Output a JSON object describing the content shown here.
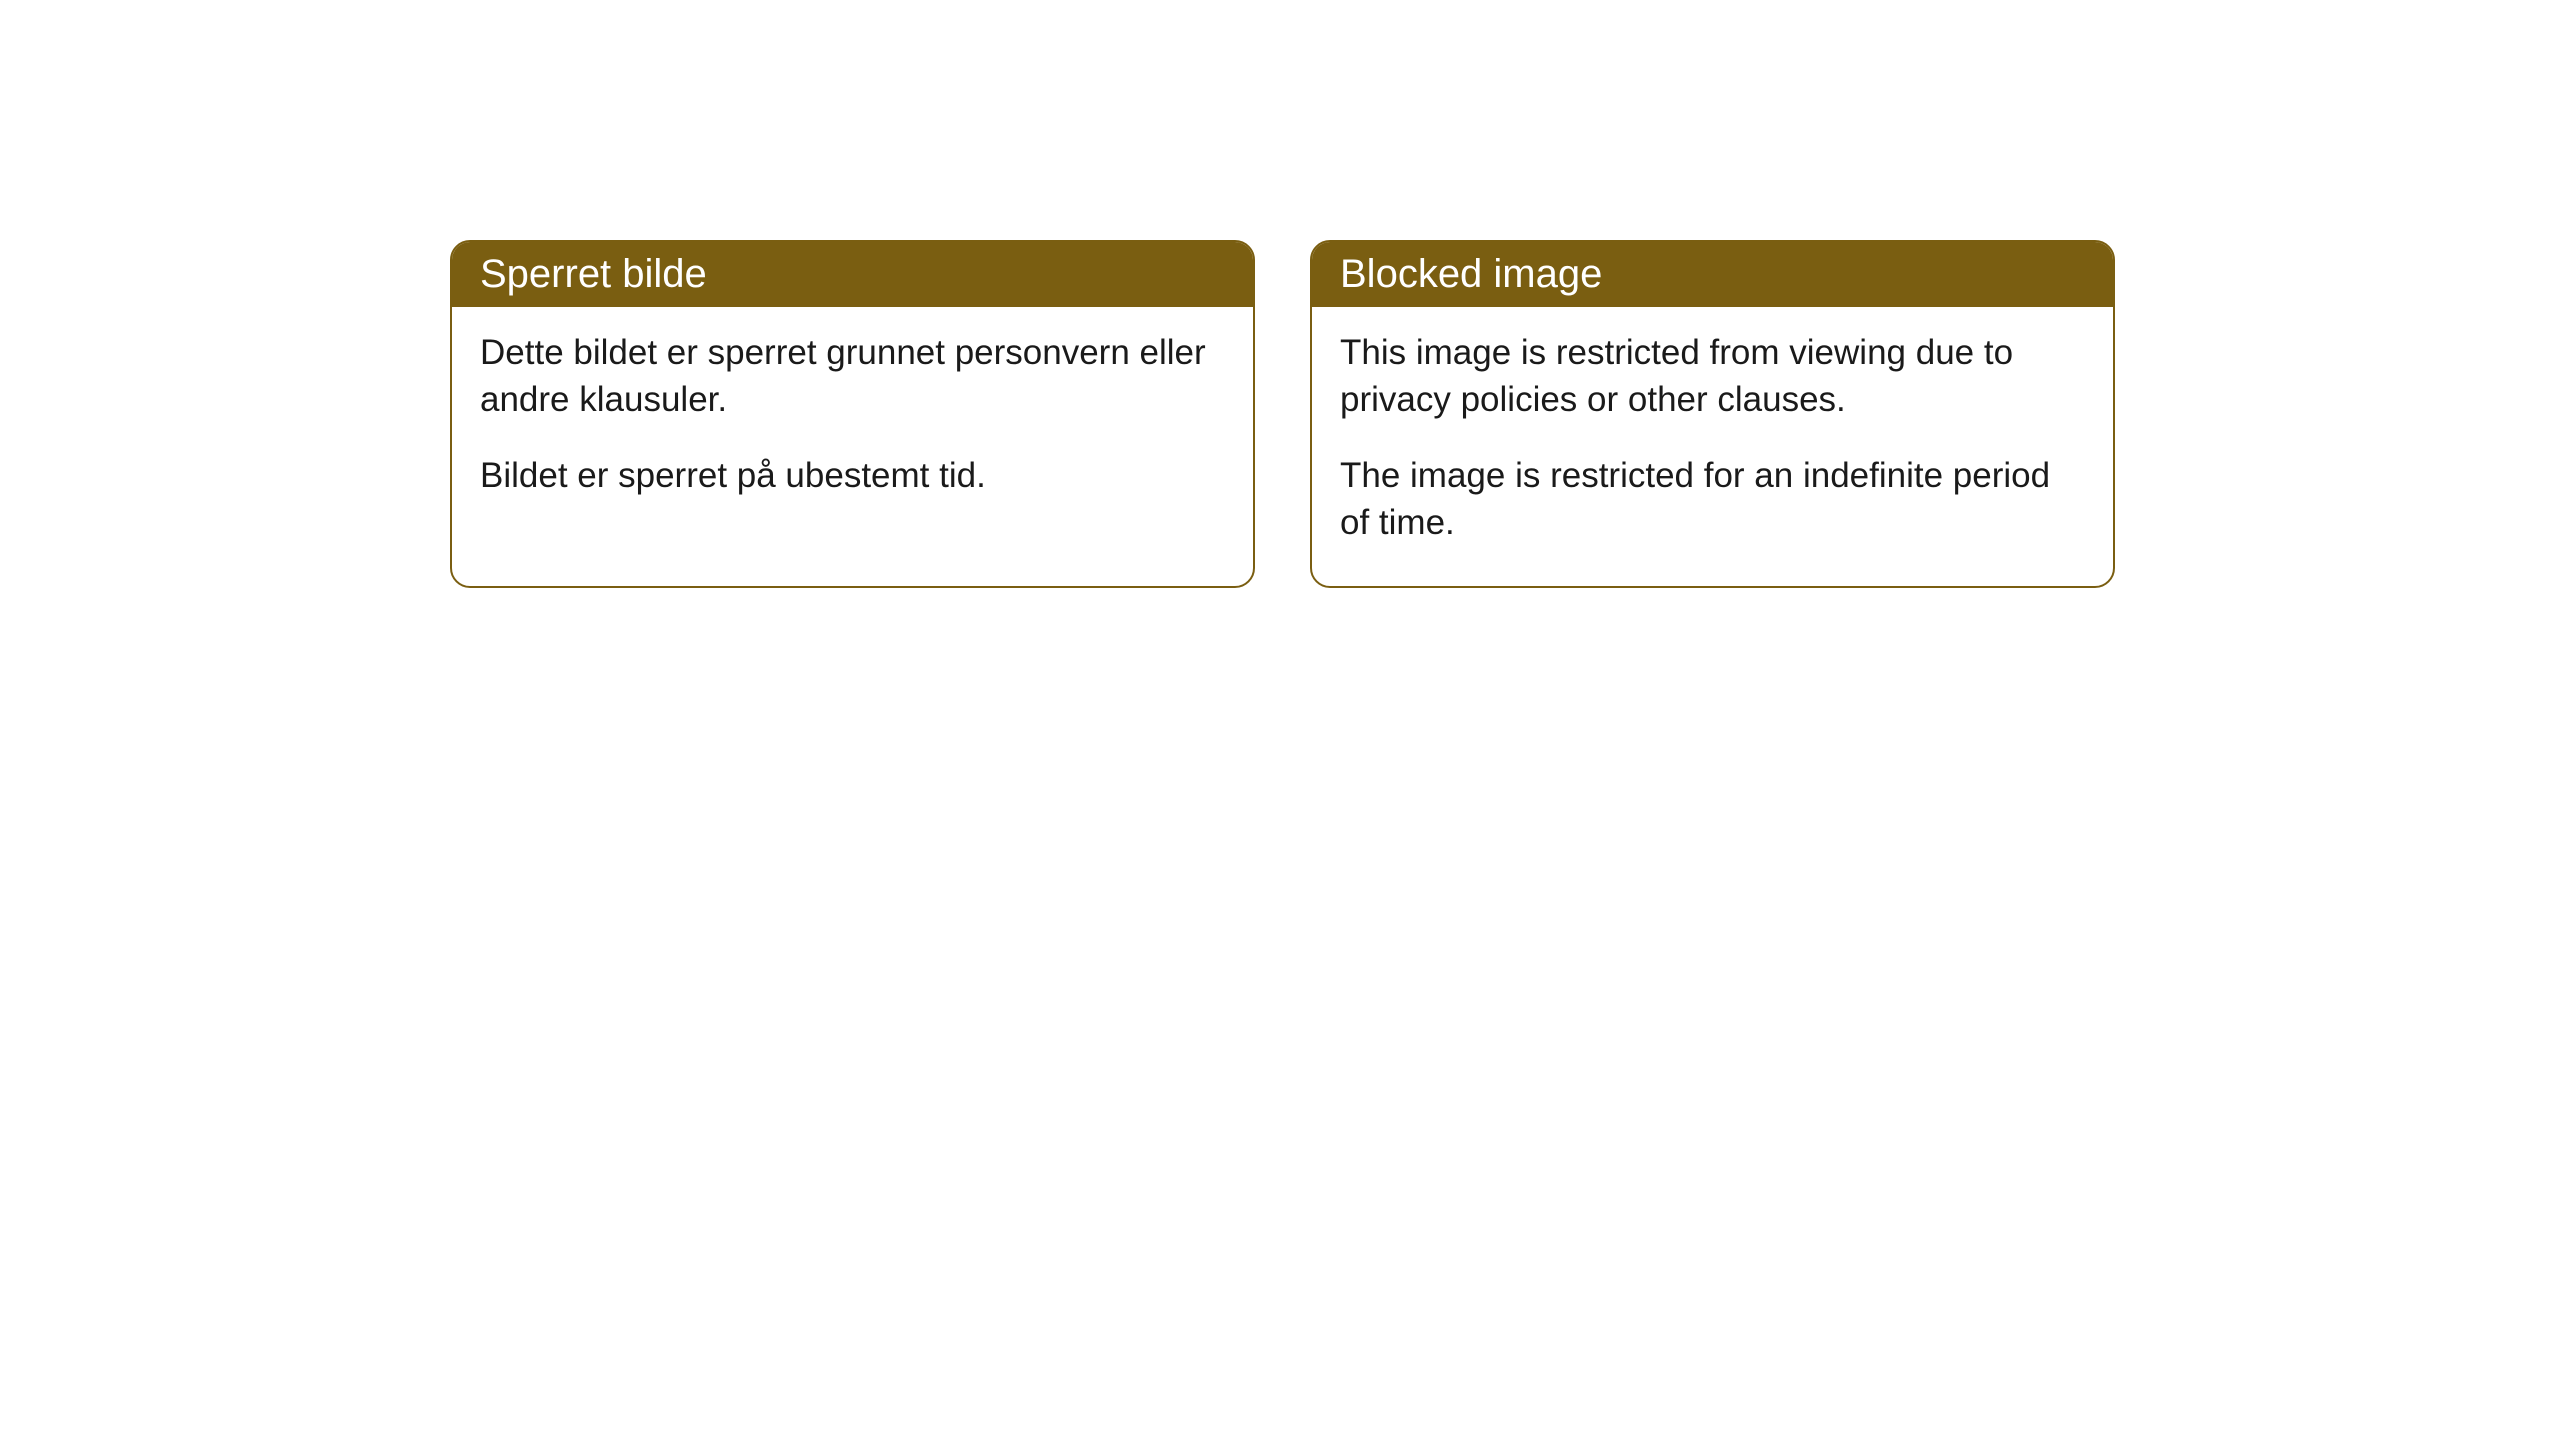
{
  "cards": [
    {
      "title": "Sperret bilde",
      "para1": "Dette bildet er sperret grunnet personvern eller andre klausuler.",
      "para2": "Bildet er sperret på ubestemt tid."
    },
    {
      "title": "Blocked image",
      "para1": "This image is restricted from viewing due to privacy policies or other clauses.",
      "para2": "The image is restricted for an indefinite period of time."
    }
  ],
  "style": {
    "header_bg": "#7a5e11",
    "header_text_color": "#ffffff",
    "border_color": "#7a5e11",
    "body_bg": "#ffffff",
    "body_text_color": "#1a1a1a",
    "border_radius": 20,
    "header_fontsize": 40,
    "body_fontsize": 35
  }
}
